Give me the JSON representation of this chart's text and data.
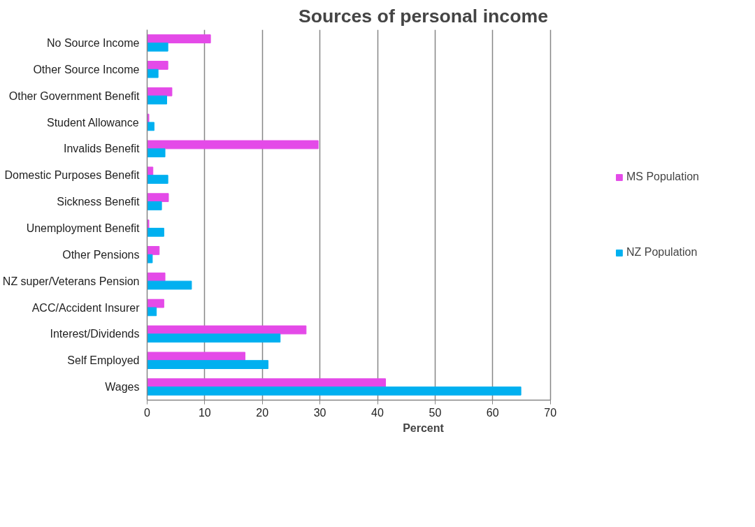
{
  "chart_data": {
    "type": "bar",
    "orientation": "horizontal",
    "title": "Sources of personal income",
    "xlabel": "Percent",
    "categories": [
      "No Source Income",
      "Other Source Income",
      "Other Government Benefit",
      "Student Allowance",
      "Invalids Benefit",
      "Domestic Purposes Benefit",
      "Sickness Benefit",
      "Unemployment Benefit",
      "Other Pensions",
      "NZ super/Veterans Pension",
      "ACC/Accident Insurer",
      "Interest/Dividends",
      "Self Employed",
      "Wages"
    ],
    "series": [
      {
        "name": "MS Population",
        "color": "#e44ae8",
        "values": [
          11.0,
          3.6,
          4.3,
          0.3,
          29.7,
          1.0,
          3.7,
          0.3,
          2.1,
          3.1,
          2.9,
          27.6,
          17.0,
          41.4
        ]
      },
      {
        "name": "NZ Population",
        "color": "#00b0f0",
        "values": [
          3.6,
          1.9,
          3.4,
          1.2,
          3.1,
          3.6,
          2.5,
          2.9,
          0.9,
          7.7,
          1.6,
          23.1,
          21.0,
          64.9
        ]
      }
    ],
    "xlim": [
      0,
      70
    ],
    "xticks": [
      0,
      10,
      20,
      30,
      40,
      50,
      60,
      70
    ],
    "grid": "x",
    "legend": "right"
  }
}
